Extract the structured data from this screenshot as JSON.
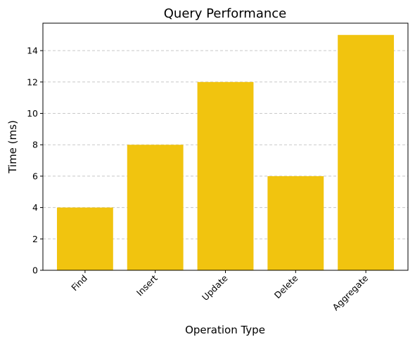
{
  "chart_data": {
    "type": "bar",
    "title": "Query Performance",
    "xlabel": "Operation Type",
    "ylabel": "Time (ms)",
    "categories": [
      "Find",
      "Insert",
      "Update",
      "Delete",
      "Aggregate"
    ],
    "values": [
      4,
      8,
      12,
      6,
      15
    ],
    "ylim": [
      0,
      15.75
    ],
    "yticks": [
      0,
      2,
      4,
      6,
      8,
      10,
      12,
      14
    ],
    "grid": "y-dashed",
    "bar_color": "#f1c40f",
    "grid_color": "#c8c8c8",
    "legend": "none"
  }
}
